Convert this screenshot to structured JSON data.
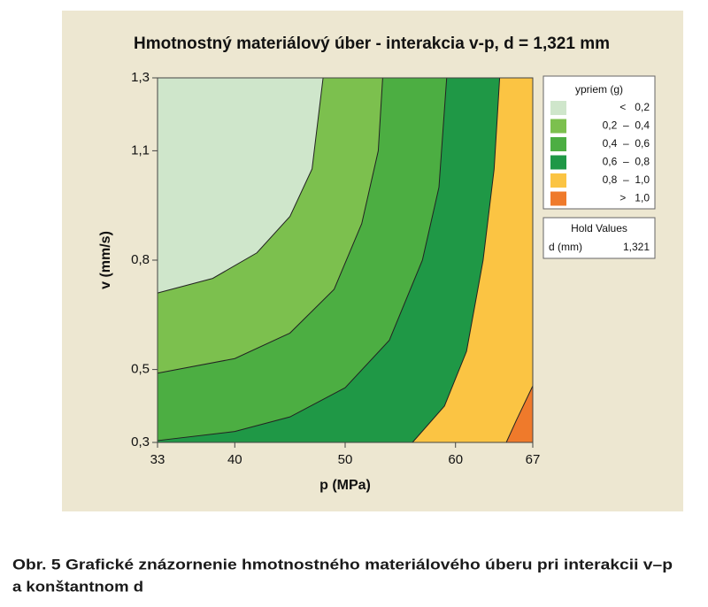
{
  "chart_data": {
    "type": "contour",
    "title": "Hmotnostný materiálový úber - interakcia v-p, d = 1,321 mm",
    "x_label": "p (MPa)",
    "y_label": "v (mm/s)",
    "xlim": [
      33,
      67
    ],
    "ylim": [
      0.3,
      1.3
    ],
    "xticks": [
      33,
      40,
      50,
      60,
      67
    ],
    "yticks": [
      {
        "value": 0.3,
        "label": "0,3"
      },
      {
        "value": 0.5,
        "label": "0,5"
      },
      {
        "value": 0.8,
        "label": "0,8"
      },
      {
        "value": 1.1,
        "label": "1,1"
      },
      {
        "value": 1.3,
        "label": "1,3"
      }
    ],
    "legend_title": "ypriem (g)",
    "bands": [
      {
        "label": "<   0,2",
        "color": "#cfe6cb"
      },
      {
        "label": "0,2  –  0,4",
        "color": "#7cc04e"
      },
      {
        "label": "0,4  –  0,6",
        "color": "#4cae42"
      },
      {
        "label": "0,6  –  0,8",
        "color": "#1f9846"
      },
      {
        "label": "0,8  –  1,0",
        "color": "#fbc443"
      },
      {
        "label": ">   1,0",
        "color": "#ef7a2b"
      }
    ],
    "contours": [
      {
        "level": 0.2,
        "x": [
          33,
          38,
          42,
          45,
          47,
          48
        ],
        "y": [
          0.71,
          0.75,
          0.82,
          0.92,
          1.05,
          1.3
        ]
      },
      {
        "level": 0.4,
        "x": [
          33,
          40,
          45,
          49,
          51.5,
          53,
          53.4
        ],
        "y": [
          0.49,
          0.53,
          0.6,
          0.72,
          0.9,
          1.1,
          1.3
        ]
      },
      {
        "level": 0.6,
        "x": [
          33,
          40,
          45,
          50,
          54,
          57,
          58.5,
          59.2
        ],
        "y": [
          0.305,
          0.33,
          0.37,
          0.45,
          0.58,
          0.8,
          1.0,
          1.3
        ]
      },
      {
        "level": 0.8,
        "x": [
          56.1,
          59,
          61,
          62.5,
          63.5,
          64
        ],
        "y": [
          0.3,
          0.4,
          0.55,
          0.8,
          1.05,
          1.3
        ]
      },
      {
        "level": 1.0,
        "x": [
          64.6,
          65.5,
          67
        ],
        "y": [
          0.3,
          0.36,
          0.455
        ]
      }
    ],
    "hold_values": {
      "title": "Hold Values",
      "name": "d (mm)",
      "value": "1,321"
    }
  },
  "caption": [
    "Obr. 5 Grafické znázornenie hmotnostného materiálového úberu pri interakcii v–p",
    "a konštantnom d"
  ]
}
